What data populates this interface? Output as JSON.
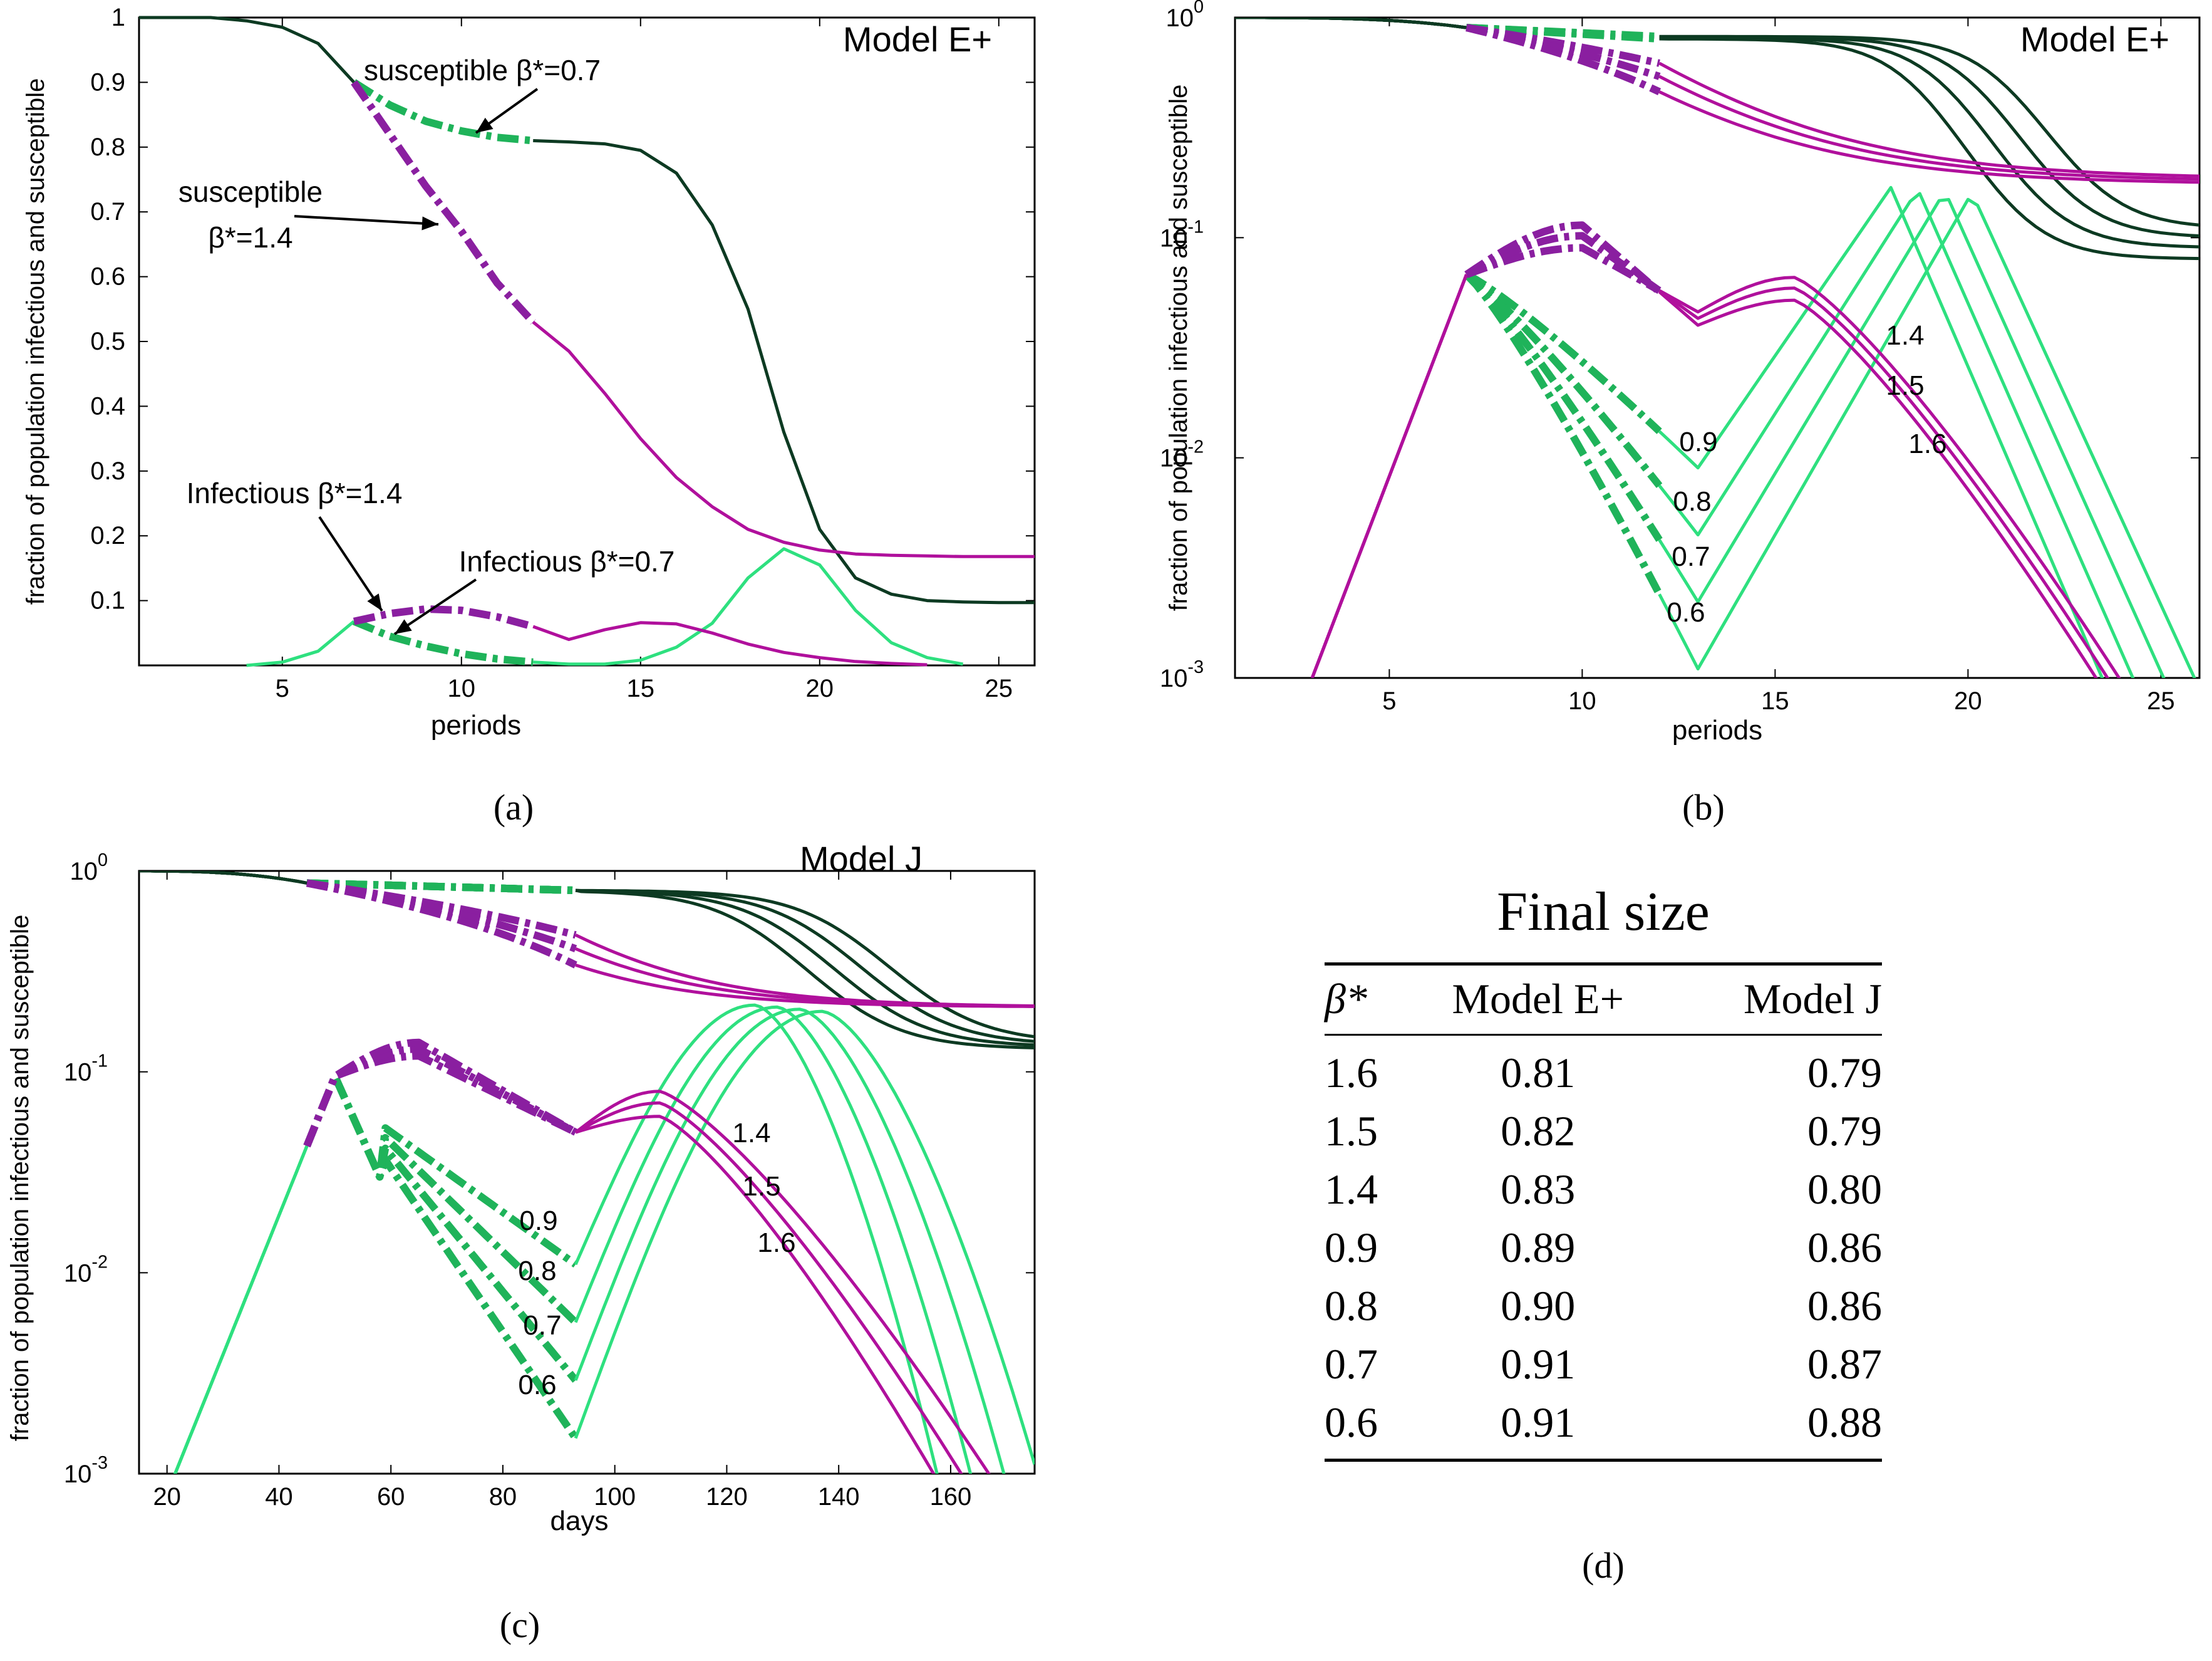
{
  "chart_data": [
    {
      "id": "a",
      "type": "line",
      "title": "Model E+",
      "xlabel": "periods",
      "ylabel": "fraction of population infectious and susceptible",
      "xlim": [
        1,
        26
      ],
      "ylim": [
        0,
        1
      ],
      "yscale": "linear",
      "xticks": [
        5,
        10,
        15,
        20,
        25
      ],
      "yticks": [
        0.1,
        0.2,
        0.3,
        0.4,
        0.5,
        0.6,
        0.7,
        0.8,
        0.9,
        1
      ],
      "ytick_labels": [
        "0.1",
        "0.2",
        "0.3",
        "0.4",
        "0.5",
        "0.6",
        "0.7",
        "0.8",
        "0.9",
        "1"
      ],
      "sublabel": "(a)",
      "colors": {
        "dark": "#0d3a22",
        "magenta": "#b0109c",
        "purple": "#8a1fa0",
        "green": "#2ee07f",
        "dgreen": "#1fb35a"
      },
      "series": [
        {
          "name": "susceptible beta*=0.7 (before)",
          "color": "dark",
          "x": [
            1,
            2,
            3,
            4,
            5,
            6,
            7
          ],
          "y": [
            1,
            1,
            1,
            0.995,
            0.985,
            0.96,
            0.9
          ]
        },
        {
          "name": "susceptible beta*=0.7 (intervention)",
          "color": "dgreen",
          "dashed": true,
          "x": [
            7,
            8,
            9,
            10,
            11,
            12
          ],
          "y": [
            0.9,
            0.865,
            0.84,
            0.825,
            0.815,
            0.81
          ]
        },
        {
          "name": "susceptible beta*=0.7 (after)",
          "color": "dark",
          "x": [
            12,
            13,
            14,
            15,
            16,
            17,
            18,
            19,
            20,
            21,
            22,
            23,
            24,
            25,
            26
          ],
          "y": [
            0.81,
            0.808,
            0.805,
            0.795,
            0.76,
            0.68,
            0.55,
            0.36,
            0.21,
            0.135,
            0.11,
            0.1,
            0.098,
            0.097,
            0.097
          ]
        },
        {
          "name": "susceptible beta*=1.4 (intervention)",
          "color": "purple",
          "dashed": true,
          "x": [
            7,
            8,
            9,
            10,
            11,
            12
          ],
          "y": [
            0.9,
            0.82,
            0.74,
            0.67,
            0.59,
            0.53
          ]
        },
        {
          "name": "susceptible beta*=1.4 (after)",
          "color": "magenta",
          "x": [
            12,
            13,
            14,
            15,
            16,
            17,
            18,
            19,
            20,
            21,
            22,
            23,
            24,
            25,
            26
          ],
          "y": [
            0.53,
            0.485,
            0.42,
            0.35,
            0.29,
            0.245,
            0.21,
            0.19,
            0.178,
            0.172,
            0.17,
            0.169,
            0.168,
            0.168,
            0.168
          ]
        },
        {
          "name": "infectious beta*=0.7 (before)",
          "color": "green",
          "x": [
            4,
            5,
            6,
            7
          ],
          "y": [
            0,
            0.005,
            0.022,
            0.068
          ]
        },
        {
          "name": "infectious beta*=0.7 (intervention)",
          "color": "dgreen",
          "dashed": true,
          "x": [
            7,
            8,
            9,
            10,
            11,
            12
          ],
          "y": [
            0.068,
            0.045,
            0.03,
            0.018,
            0.01,
            0.005
          ]
        },
        {
          "name": "infectious beta*=0.7 (after)",
          "color": "green",
          "x": [
            12,
            13,
            14,
            15,
            16,
            17,
            18,
            19,
            20,
            21,
            22,
            23,
            24
          ],
          "y": [
            0.005,
            0.002,
            0.002,
            0.008,
            0.028,
            0.065,
            0.135,
            0.18,
            0.155,
            0.085,
            0.035,
            0.012,
            0.002
          ]
        },
        {
          "name": "infectious beta*=1.4 (intervention)",
          "color": "purple",
          "dashed": true,
          "x": [
            7,
            8,
            9,
            10,
            11,
            12
          ],
          "y": [
            0.068,
            0.08,
            0.087,
            0.085,
            0.075,
            0.06
          ]
        },
        {
          "name": "infectious beta*=1.4 (after)",
          "color": "magenta",
          "x": [
            12,
            13,
            14,
            15,
            16,
            17,
            18,
            19,
            20,
            21,
            22,
            23
          ],
          "y": [
            0.06,
            0.04,
            0.055,
            0.066,
            0.064,
            0.05,
            0.033,
            0.02,
            0.012,
            0.006,
            0.003,
            0.001
          ]
        }
      ],
      "annotations": [
        {
          "text": "susceptible β*=0.7",
          "lines": [
            "susceptible β*=0.7"
          ]
        },
        {
          "text": "susceptible β*=1.4",
          "lines": [
            "susceptible",
            "β*=1.4"
          ]
        },
        {
          "text": "Infectious β*=1.4",
          "lines": [
            "Infectious β*=1.4"
          ]
        },
        {
          "text": "Infectious β*=0.7",
          "lines": [
            "Infectious β*=0.7"
          ]
        }
      ]
    },
    {
      "id": "b",
      "type": "line",
      "title": "Model E+",
      "xlabel": "periods",
      "ylabel": "fraction of population infectious and susceptible",
      "xlim": [
        1,
        26
      ],
      "ylim": [
        0.001,
        1
      ],
      "yscale": "log",
      "xticks": [
        5,
        10,
        15,
        20,
        25
      ],
      "yticks": [
        0.001,
        0.01,
        0.1,
        1
      ],
      "ytick_labels": [
        "10^-3",
        "10^-2",
        "10^-1",
        "10^0"
      ],
      "sublabel": "(b)",
      "curve_labels": [
        "0.9",
        "0.8",
        "0.7",
        "0.6",
        "1.4",
        "1.5",
        "1.6"
      ],
      "note": "Curves for beta* = 0.6, 0.7, 0.8, 0.9 (green) and 1.4, 1.5, 1.6 (magenta); intervention periods 7-12 dashed."
    },
    {
      "id": "c",
      "type": "line",
      "title": "Model J",
      "xlabel": "days",
      "ylabel": "fraction of population infectious and susceptible",
      "xlim": [
        15,
        175
      ],
      "ylim": [
        0.001,
        1
      ],
      "yscale": "log",
      "xticks": [
        20,
        40,
        60,
        80,
        100,
        120,
        140,
        160
      ],
      "yticks": [
        0.001,
        0.01,
        0.1,
        1
      ],
      "ytick_labels": [
        "10^-3",
        "10^-2",
        "10^-1",
        "10^0"
      ],
      "sublabel": "(c)",
      "curve_labels": [
        "0.9",
        "0.8",
        "0.7",
        "0.6",
        "1.4",
        "1.5",
        "1.6"
      ],
      "note": "Curves for beta* = 0.6, 0.7, 0.8, 0.9 (green) and 1.4, 1.5, 1.6 (magenta); intervention days 45-93 dashed."
    },
    {
      "id": "d",
      "type": "table",
      "title": "Final size",
      "sublabel": "(d)",
      "columns": [
        "β*",
        "Model E+",
        "Model J"
      ],
      "rows": [
        [
          "1.6",
          "0.81",
          "0.79"
        ],
        [
          "1.5",
          "0.82",
          "0.79"
        ],
        [
          "1.4",
          "0.83",
          "0.80"
        ],
        [
          "0.9",
          "0.89",
          "0.86"
        ],
        [
          "0.8",
          "0.90",
          "0.86"
        ],
        [
          "0.7",
          "0.91",
          "0.87"
        ],
        [
          "0.6",
          "0.91",
          "0.88"
        ]
      ]
    }
  ]
}
